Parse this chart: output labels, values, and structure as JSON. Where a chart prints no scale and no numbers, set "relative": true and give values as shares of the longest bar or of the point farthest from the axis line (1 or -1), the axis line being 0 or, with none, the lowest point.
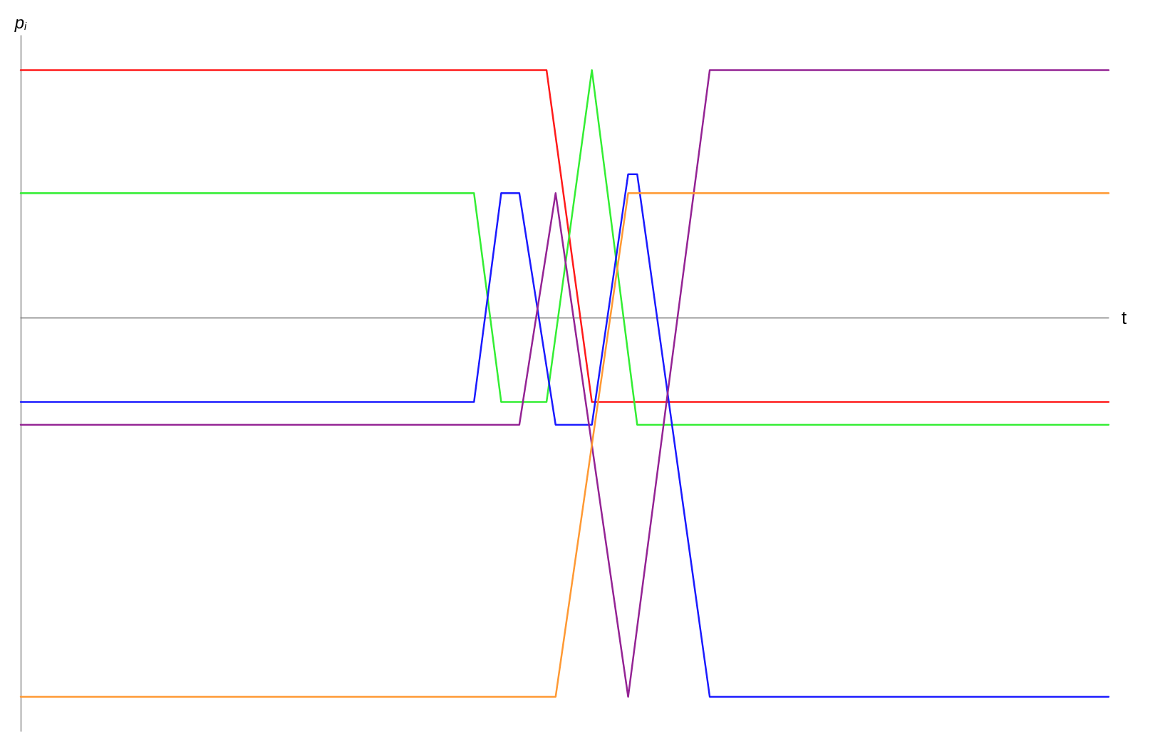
{
  "chart_data": {
    "type": "line",
    "relative": true,
    "xlabel": "t",
    "ylabel": "p$_{i}$",
    "marker": "none",
    "line_style": "solid",
    "grid": false,
    "categories": [
      null,
      null,
      null,
      null,
      null,
      null,
      null,
      null,
      null,
      null,
      null,
      null,
      null,
      null,
      null,
      null,
      null,
      null,
      null,
      null,
      null,
      null,
      null,
      null,
      null,
      null,
      null,
      null,
      null,
      null,
      null,
      null,
      null,
      null,
      null,
      null,
      null,
      null,
      null,
      null,
      null,
      null,
      null,
      null,
      null,
      null,
      null,
      null,
      null,
      null,
      null,
      null,
      null,
      null,
      null,
      null,
      null,
      null,
      null,
      null,
      null,
      null,
      null,
      null,
      null,
      null,
      null,
      null,
      null,
      null,
      null,
      null,
      null,
      null,
      null,
      null,
      null,
      null,
      null,
      null,
      null,
      null,
      null,
      null,
      null,
      null,
      null,
      null,
      null,
      null,
      null,
      null,
      null,
      null,
      null,
      null,
      null,
      null,
      null,
      null,
      null,
      null,
      null,
      null,
      null,
      null,
      null,
      null,
      null,
      null,
      null,
      null,
      null,
      null,
      null,
      null,
      null,
      null,
      null,
      null,
      null
    ],
    "series": [
      {
        "color": "#ff1a1a",
        "values": [
          0.654,
          0.654,
          0.654,
          0.654,
          0.654,
          0.654,
          0.654,
          0.654,
          0.654,
          0.654,
          0.654,
          0.654,
          0.654,
          0.654,
          0.654,
          0.654,
          0.654,
          0.654,
          0.654,
          0.654,
          0.654,
          0.654,
          0.654,
          0.654,
          0.654,
          0.654,
          0.654,
          0.654,
          0.654,
          0.654,
          0.654,
          0.654,
          0.654,
          0.654,
          0.654,
          0.654,
          0.654,
          0.654,
          0.654,
          0.654,
          0.654,
          0.654,
          0.654,
          0.654,
          0.654,
          0.654,
          0.654,
          0.654,
          0.654,
          0.654,
          0.654,
          0.654,
          0.654,
          0.654,
          0.654,
          0.654,
          0.654,
          0.654,
          0.654,
          0.479,
          0.304,
          0.128,
          -0.047,
          -0.222,
          -0.222,
          -0.222,
          -0.222,
          -0.222,
          -0.222,
          -0.222,
          -0.222,
          -0.222,
          -0.222,
          -0.222,
          -0.222,
          -0.222,
          -0.222,
          -0.222,
          -0.222,
          -0.222,
          -0.222,
          -0.222,
          -0.222,
          -0.222,
          -0.222,
          -0.222,
          -0.222,
          -0.222,
          -0.222,
          -0.222,
          -0.222,
          -0.222,
          -0.222,
          -0.222,
          -0.222,
          -0.222,
          -0.222,
          -0.222,
          -0.222,
          -0.222,
          -0.222,
          -0.222,
          -0.222,
          -0.222,
          -0.222,
          -0.222,
          -0.222,
          -0.222,
          -0.222,
          -0.222,
          -0.222,
          -0.222,
          -0.222,
          -0.222,
          -0.222,
          -0.222,
          -0.222,
          -0.222,
          -0.222,
          -0.222,
          -0.222
        ]
      },
      {
        "color": "#33ee33",
        "values": [
          0.329,
          0.329,
          0.329,
          0.329,
          0.329,
          0.329,
          0.329,
          0.329,
          0.329,
          0.329,
          0.329,
          0.329,
          0.329,
          0.329,
          0.329,
          0.329,
          0.329,
          0.329,
          0.329,
          0.329,
          0.329,
          0.329,
          0.329,
          0.329,
          0.329,
          0.329,
          0.329,
          0.329,
          0.329,
          0.329,
          0.329,
          0.329,
          0.329,
          0.329,
          0.329,
          0.329,
          0.329,
          0.329,
          0.329,
          0.329,
          0.329,
          0.329,
          0.329,
          0.329,
          0.329,
          0.329,
          0.329,
          0.329,
          0.329,
          0.329,
          0.329,
          0.145,
          -0.038,
          -0.222,
          -0.222,
          -0.222,
          -0.222,
          -0.222,
          -0.222,
          -0.047,
          0.128,
          0.304,
          0.479,
          0.654,
          0.467,
          0.28,
          0.093,
          -0.095,
          -0.282,
          -0.282,
          -0.282,
          -0.282,
          -0.282,
          -0.282,
          -0.282,
          -0.282,
          -0.282,
          -0.282,
          -0.282,
          -0.282,
          -0.282,
          -0.282,
          -0.282,
          -0.282,
          -0.282,
          -0.282,
          -0.282,
          -0.282,
          -0.282,
          -0.282,
          -0.282,
          -0.282,
          -0.282,
          -0.282,
          -0.282,
          -0.282,
          -0.282,
          -0.282,
          -0.282,
          -0.282,
          -0.282,
          -0.282,
          -0.282,
          -0.282,
          -0.282,
          -0.282,
          -0.282,
          -0.282,
          -0.282,
          -0.282,
          -0.282,
          -0.282,
          -0.282,
          -0.282,
          -0.282,
          -0.282,
          -0.282,
          -0.282,
          -0.282,
          -0.282,
          -0.282
        ]
      },
      {
        "color": "#1a1aff",
        "values": [
          -0.222,
          -0.222,
          -0.222,
          -0.222,
          -0.222,
          -0.222,
          -0.222,
          -0.222,
          -0.222,
          -0.222,
          -0.222,
          -0.222,
          -0.222,
          -0.222,
          -0.222,
          -0.222,
          -0.222,
          -0.222,
          -0.222,
          -0.222,
          -0.222,
          -0.222,
          -0.222,
          -0.222,
          -0.222,
          -0.222,
          -0.222,
          -0.222,
          -0.222,
          -0.222,
          -0.222,
          -0.222,
          -0.222,
          -0.222,
          -0.222,
          -0.222,
          -0.222,
          -0.222,
          -0.222,
          -0.222,
          -0.222,
          -0.222,
          -0.222,
          -0.222,
          -0.222,
          -0.222,
          -0.222,
          -0.222,
          -0.222,
          -0.222,
          -0.222,
          -0.038,
          0.145,
          0.329,
          0.329,
          0.329,
          0.176,
          0.024,
          -0.129,
          -0.282,
          -0.282,
          -0.282,
          -0.282,
          -0.282,
          -0.117,
          0.048,
          0.214,
          0.379,
          0.379,
          0.207,
          0.034,
          -0.138,
          -0.31,
          -0.483,
          -0.655,
          -0.828,
          -1,
          -1,
          -1,
          -1,
          -1,
          -1,
          -1,
          -1,
          -1,
          -1,
          -1,
          -1,
          -1,
          -1,
          -1,
          -1,
          -1,
          -1,
          -1,
          -1,
          -1,
          -1,
          -1,
          -1,
          -1,
          -1,
          -1,
          -1,
          -1,
          -1,
          -1,
          -1,
          -1,
          -1,
          -1,
          -1,
          -1,
          -1,
          -1,
          -1,
          -1,
          -1,
          -1,
          -1,
          -1
        ]
      },
      {
        "color": "#942394",
        "values": [
          -0.282,
          -0.282,
          -0.282,
          -0.282,
          -0.282,
          -0.282,
          -0.282,
          -0.282,
          -0.282,
          -0.282,
          -0.282,
          -0.282,
          -0.282,
          -0.282,
          -0.282,
          -0.282,
          -0.282,
          -0.282,
          -0.282,
          -0.282,
          -0.282,
          -0.282,
          -0.282,
          -0.282,
          -0.282,
          -0.282,
          -0.282,
          -0.282,
          -0.282,
          -0.282,
          -0.282,
          -0.282,
          -0.282,
          -0.282,
          -0.282,
          -0.282,
          -0.282,
          -0.282,
          -0.282,
          -0.282,
          -0.282,
          -0.282,
          -0.282,
          -0.282,
          -0.282,
          -0.282,
          -0.282,
          -0.282,
          -0.282,
          -0.282,
          -0.282,
          -0.282,
          -0.282,
          -0.282,
          -0.282,
          -0.282,
          -0.129,
          0.024,
          0.176,
          0.329,
          0.163,
          -0.003,
          -0.169,
          -0.335,
          -0.502,
          -0.668,
          -0.834,
          -1,
          -0.816,
          -0.632,
          -0.449,
          -0.265,
          -0.081,
          0.103,
          0.286,
          0.47,
          0.654,
          0.654,
          0.654,
          0.654,
          0.654,
          0.654,
          0.654,
          0.654,
          0.654,
          0.654,
          0.654,
          0.654,
          0.654,
          0.654,
          0.654,
          0.654,
          0.654,
          0.654,
          0.654,
          0.654,
          0.654,
          0.654,
          0.654,
          0.654,
          0.654,
          0.654,
          0.654,
          0.654,
          0.654,
          0.654,
          0.654,
          0.654,
          0.654,
          0.654,
          0.654,
          0.654,
          0.654,
          0.654,
          0.654,
          0.654,
          0.654,
          0.654,
          0.654,
          0.654,
          0.654
        ]
      },
      {
        "color": "#ff9933",
        "values": [
          -1,
          -1,
          -1,
          -1,
          -1,
          -1,
          -1,
          -1,
          -1,
          -1,
          -1,
          -1,
          -1,
          -1,
          -1,
          -1,
          -1,
          -1,
          -1,
          -1,
          -1,
          -1,
          -1,
          -1,
          -1,
          -1,
          -1,
          -1,
          -1,
          -1,
          -1,
          -1,
          -1,
          -1,
          -1,
          -1,
          -1,
          -1,
          -1,
          -1,
          -1,
          -1,
          -1,
          -1,
          -1,
          -1,
          -1,
          -1,
          -1,
          -1,
          -1,
          -1,
          -1,
          -1,
          -1,
          -1,
          -1,
          -1,
          -1,
          -1,
          -0.834,
          -0.668,
          -0.502,
          -0.335,
          -0.169,
          -0.003,
          0.163,
          0.329,
          0.329,
          0.329,
          0.329,
          0.329,
          0.329,
          0.329,
          0.329,
          0.329,
          0.329,
          0.329,
          0.329,
          0.329,
          0.329,
          0.329,
          0.329,
          0.329,
          0.329,
          0.329,
          0.329,
          0.329,
          0.329,
          0.329,
          0.329,
          0.329,
          0.329,
          0.329,
          0.329,
          0.329,
          0.329,
          0.329,
          0.329,
          0.329,
          0.329,
          0.329,
          0.329,
          0.329,
          0.329,
          0.329,
          0.329,
          0.329,
          0.329,
          0.329,
          0.329,
          0.329,
          0.329,
          0.329,
          0.329,
          0.329,
          0.329,
          0.329,
          0.329,
          0.329,
          0.329
        ]
      }
    ]
  }
}
